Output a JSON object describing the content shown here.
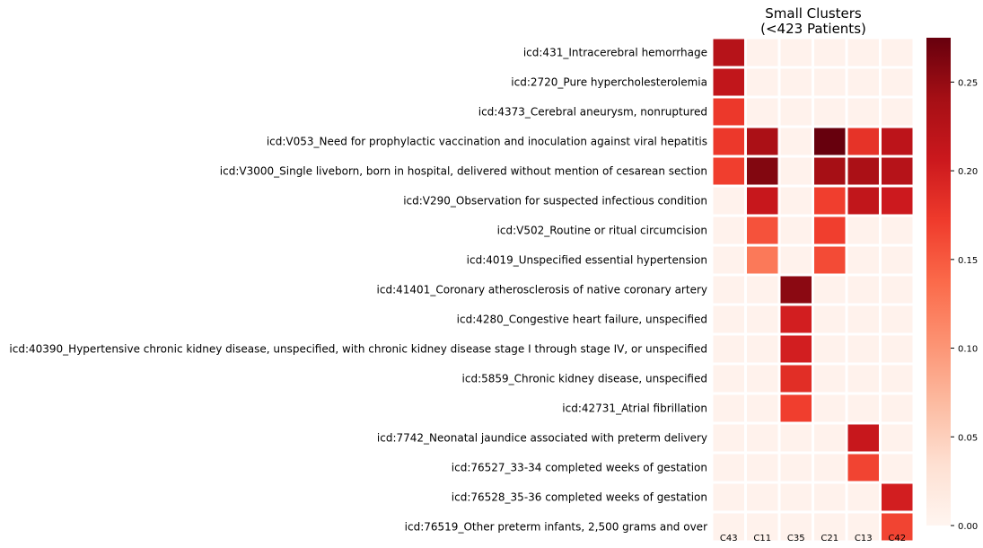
{
  "chart_data": {
    "type": "heatmap",
    "title": "Small Clusters\n(<423 Patients)",
    "title_lines": [
      "Small Clusters",
      "(<423 Patients)"
    ],
    "columns": [
      "C43",
      "C11",
      "C35",
      "C21",
      "C13",
      "C42"
    ],
    "rows": [
      "icd:431_Intracerebral hemorrhage",
      "icd:2720_Pure hypercholesterolemia",
      "icd:4373_Cerebral aneurysm, nonruptured",
      "icd:V053_Need for prophylactic vaccination and inoculation against viral hepatitis",
      "icd:V3000_Single liveborn, born in hospital, delivered without mention of cesarean section",
      "icd:V290_Observation for suspected infectious condition",
      "icd:V502_Routine or ritual circumcision",
      "icd:4019_Unspecified essential hypertension",
      "icd:41401_Coronary atherosclerosis of native coronary artery",
      "icd:4280_Congestive heart failure, unspecified",
      "icd:40390_Hypertensive chronic kidney disease, unspecified, with chronic kidney disease stage I through stage IV, or unspecified",
      "icd:5859_Chronic kidney disease, unspecified",
      "icd:42731_Atrial fibrillation",
      "icd:7742_Neonatal jaundice associated with preterm delivery",
      "icd:76527_33-34 completed weeks of gestation",
      "icd:76528_35-36 completed weeks of gestation",
      "icd:76519_Other preterm infants, 2,500 grams and over"
    ],
    "values": [
      [
        0.225,
        0.005,
        0.005,
        0.005,
        0.005,
        0.005
      ],
      [
        0.215,
        0.005,
        0.005,
        0.005,
        0.005,
        0.005
      ],
      [
        0.175,
        0.005,
        0.005,
        0.005,
        0.005,
        0.005
      ],
      [
        0.175,
        0.235,
        0.005,
        0.275,
        0.18,
        0.22
      ],
      [
        0.17,
        0.26,
        0.005,
        0.24,
        0.235,
        0.225
      ],
      [
        0.005,
        0.21,
        0.005,
        0.17,
        0.215,
        0.205
      ],
      [
        0.005,
        0.155,
        0.005,
        0.17,
        0.005,
        0.005
      ],
      [
        0.005,
        0.125,
        0.005,
        0.16,
        0.005,
        0.005
      ],
      [
        0.005,
        0.005,
        0.255,
        0.005,
        0.005,
        0.005
      ],
      [
        0.005,
        0.005,
        0.2,
        0.005,
        0.005,
        0.005
      ],
      [
        0.005,
        0.005,
        0.2,
        0.005,
        0.005,
        0.005
      ],
      [
        0.005,
        0.005,
        0.185,
        0.005,
        0.005,
        0.005
      ],
      [
        0.005,
        0.005,
        0.17,
        0.005,
        0.005,
        0.005
      ],
      [
        0.005,
        0.005,
        0.005,
        0.005,
        0.21,
        0.005
      ],
      [
        0.005,
        0.005,
        0.005,
        0.005,
        0.165,
        0.005
      ],
      [
        0.005,
        0.005,
        0.005,
        0.005,
        0.005,
        0.2
      ],
      [
        0.005,
        0.005,
        0.005,
        0.005,
        0.005,
        0.165
      ]
    ],
    "colorbar": {
      "cmap": "Reds",
      "vmin": 0.0,
      "vmax": 0.275,
      "ticks": [
        0.0,
        0.05,
        0.1,
        0.15,
        0.2,
        0.25
      ],
      "tick_labels": [
        "0.00",
        "0.05",
        "0.10",
        "0.15",
        "0.20",
        "0.25"
      ]
    },
    "xlabel": "",
    "ylabel": "",
    "cell_border_color": "#ffffff",
    "grid": false,
    "legend": "colorbar-right"
  }
}
